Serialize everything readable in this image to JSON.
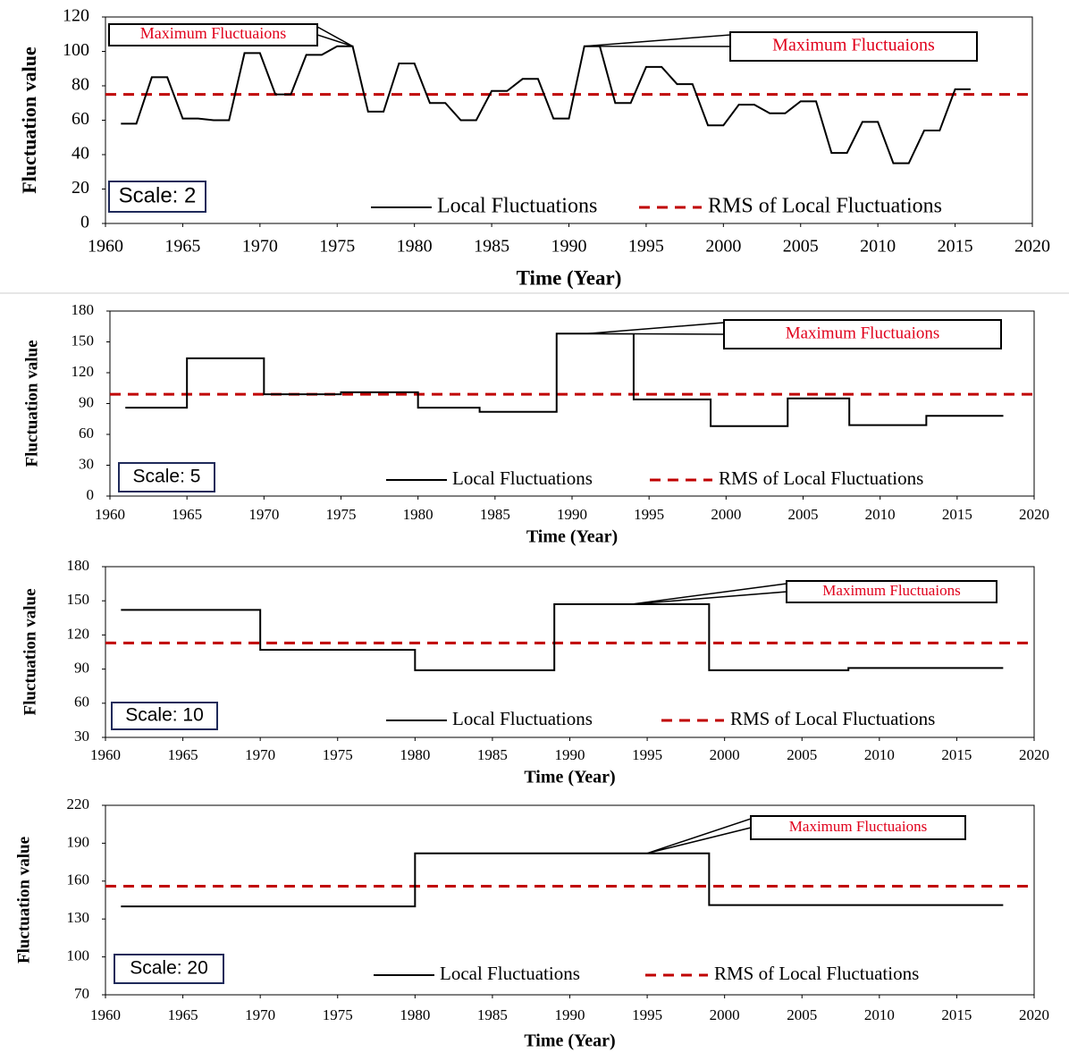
{
  "chart_data": [
    {
      "type": "line",
      "scale_label": "Scale: 2",
      "xlabel": "Time (Year)",
      "ylabel": "Fluctuation value",
      "xlim": [
        1960,
        2020
      ],
      "xticks": [
        1960,
        1965,
        1970,
        1975,
        1980,
        1985,
        1990,
        1995,
        2000,
        2005,
        2010,
        2015,
        2020
      ],
      "ylim": [
        0,
        120
      ],
      "yticks": [
        0,
        20,
        40,
        60,
        80,
        100,
        120
      ],
      "series": [
        {
          "name": "Local Fluctuations",
          "color": "#000000",
          "x": [
            1961,
            1962,
            1963,
            1964,
            1965,
            1966,
            1967,
            1968,
            1969,
            1970,
            1971,
            1972,
            1973,
            1974,
            1975,
            1976,
            1977,
            1978,
            1979,
            1980,
            1981,
            1982,
            1983,
            1984,
            1985,
            1986,
            1987,
            1988,
            1989,
            1990,
            1991,
            1992,
            1993,
            1994,
            1995,
            1996,
            1997,
            1998,
            1999,
            2000,
            2001,
            2002,
            2003,
            2004,
            2005,
            2006,
            2007,
            2008,
            2009,
            2010,
            2011,
            2012,
            2013,
            2014,
            2015,
            2016
          ],
          "values": [
            58,
            58,
            85,
            85,
            61,
            61,
            60,
            60,
            99,
            99,
            75,
            75,
            98,
            98,
            103,
            103,
            65,
            65,
            93,
            93,
            70,
            70,
            60,
            60,
            77,
            77,
            84,
            84,
            61,
            61,
            103,
            103,
            70,
            70,
            91,
            91,
            81,
            81,
            57,
            57,
            69,
            69,
            64,
            64,
            71,
            71,
            41,
            41,
            59,
            59,
            35,
            35,
            54,
            54,
            78,
            78
          ]
        }
      ],
      "reference_lines": [
        {
          "name": "RMS of Local Fluctuations",
          "value": 75,
          "color": "#c00000",
          "dashed": true
        }
      ],
      "annotations": [
        {
          "text": "Maximum  Fluctuaions",
          "x": 1976,
          "y": 103
        },
        {
          "text": "Maximum Fluctuaions",
          "x": 1991,
          "y": 103
        }
      ]
    },
    {
      "type": "line",
      "scale_label": "Scale: 5",
      "xlabel": "Time (Year)",
      "ylabel": "Fluctuation value",
      "xlim": [
        1960,
        2020
      ],
      "xticks": [
        1960,
        1965,
        1970,
        1975,
        1980,
        1985,
        1990,
        1995,
        2000,
        2005,
        2010,
        2015,
        2020
      ],
      "ylim": [
        0,
        180
      ],
      "yticks": [
        0,
        30,
        60,
        90,
        120,
        150,
        180
      ],
      "series": [
        {
          "name": "Local Fluctuations",
          "color": "#000000",
          "x": [
            1961,
            1965,
            1965,
            1970,
            1970,
            1975,
            1975,
            1980,
            1980,
            1984,
            1984,
            1989,
            1989,
            1994,
            1994,
            1999,
            1999,
            2004,
            2004,
            2008,
            2008,
            2013,
            2013,
            2018
          ],
          "values": [
            86,
            86,
            134,
            134,
            99,
            99,
            101,
            101,
            86,
            86,
            82,
            82,
            158,
            158,
            94,
            94,
            68,
            68,
            95,
            95,
            69,
            69,
            78,
            78
          ]
        }
      ],
      "reference_lines": [
        {
          "name": "RMS of Local Fluctuations",
          "value": 99,
          "color": "#c00000",
          "dashed": true
        }
      ],
      "annotations": [
        {
          "text": "Maximum Fluctuaions",
          "x": 1991,
          "y": 158
        }
      ]
    },
    {
      "type": "line",
      "scale_label": "Scale: 10",
      "xlabel": "Time (Year)",
      "ylabel": "Fluctuation value",
      "xlim": [
        1960,
        2020
      ],
      "xticks": [
        1960,
        1965,
        1970,
        1975,
        1980,
        1985,
        1990,
        1995,
        2000,
        2005,
        2010,
        2015,
        2020
      ],
      "ylim": [
        30,
        180
      ],
      "yticks": [
        30,
        60,
        90,
        120,
        150,
        180
      ],
      "series": [
        {
          "name": "Local Fluctuations",
          "color": "#000000",
          "x": [
            1961,
            1970,
            1970,
            1980,
            1980,
            1989,
            1989,
            1999,
            1999,
            2008,
            2008,
            2018
          ],
          "values": [
            142,
            142,
            107,
            107,
            89,
            89,
            147,
            147,
            89,
            89,
            91,
            91
          ]
        }
      ],
      "reference_lines": [
        {
          "name": "RMS of Local Fluctuations",
          "value": 113,
          "color": "#c00000",
          "dashed": true
        }
      ],
      "annotations": [
        {
          "text": "Maximum  Fluctuaions",
          "x": 1994,
          "y": 147
        }
      ]
    },
    {
      "type": "line",
      "scale_label": "Scale: 20",
      "xlabel": "Time (Year)",
      "ylabel": "Fluctuation value",
      "xlim": [
        1960,
        2020
      ],
      "xticks": [
        1960,
        1965,
        1970,
        1975,
        1980,
        1985,
        1990,
        1995,
        2000,
        2005,
        2010,
        2015,
        2020
      ],
      "ylim": [
        70,
        220
      ],
      "yticks": [
        70,
        100,
        130,
        160,
        190,
        220
      ],
      "series": [
        {
          "name": "Local Fluctuations",
          "color": "#000000",
          "x": [
            1961,
            1980,
            1980,
            1999,
            1999,
            2018
          ],
          "values": [
            140,
            140,
            182,
            182,
            141,
            141
          ]
        }
      ],
      "reference_lines": [
        {
          "name": "RMS of Local Fluctuations",
          "value": 156,
          "color": "#c00000",
          "dashed": true
        }
      ],
      "annotations": [
        {
          "text": "Maximum  Fluctuaions",
          "x": 1995,
          "y": 182
        }
      ]
    }
  ]
}
